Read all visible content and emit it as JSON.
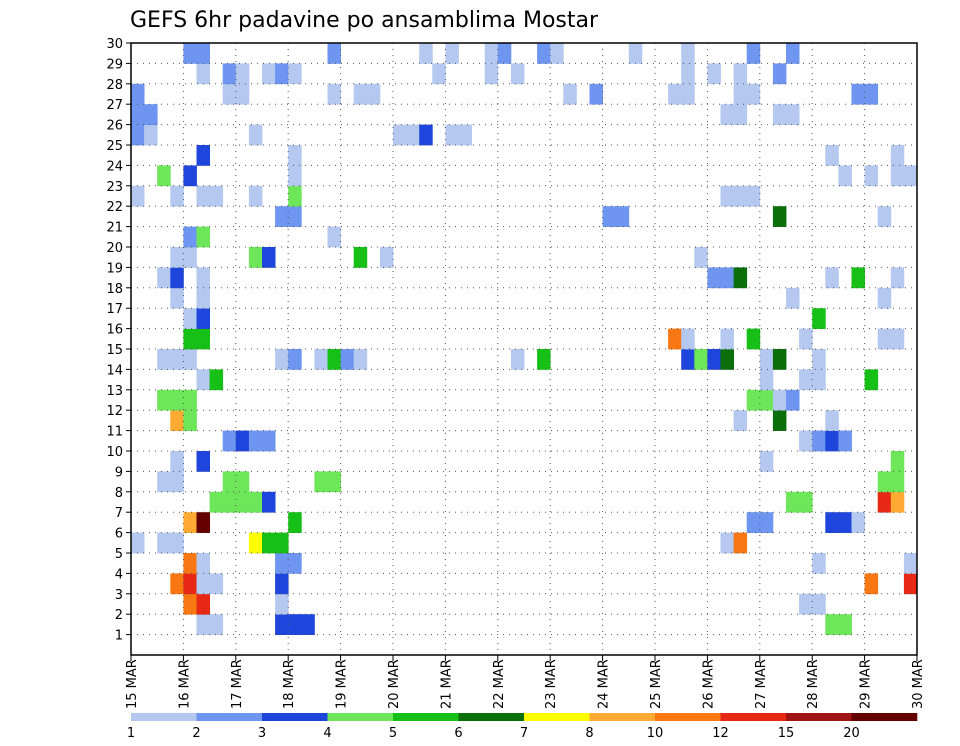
{
  "chart_data": {
    "type": "heatmap",
    "title": "GEFS 6hr padavine po ansamblima Mostar",
    "y_ticks": [
      "1",
      "2",
      "3",
      "4",
      "5",
      "6",
      "7",
      "8",
      "9",
      "10",
      "11",
      "12",
      "13",
      "14",
      "15",
      "16",
      "17",
      "18",
      "19",
      "20",
      "21",
      "22",
      "23",
      "24",
      "25",
      "26",
      "27",
      "28",
      "29",
      "30"
    ],
    "x_ticks": [
      "15 MAR",
      "16 MAR",
      "17 MAR",
      "18 MAR",
      "19 MAR",
      "20 MAR",
      "21 MAR",
      "22 MAR",
      "23 MAR",
      "24 MAR",
      "25 MAR",
      "26 MAR",
      "27 MAR",
      "28 MAR",
      "29 MAR",
      "30 MAR"
    ],
    "grid": "dotted",
    "legend": {
      "position": "bottom",
      "thresholds": [
        "1",
        "2",
        "3",
        "4",
        "5",
        "6",
        "7",
        "8",
        "10",
        "12",
        "15",
        "20"
      ],
      "colors": [
        "#b4c8f0",
        "#6e96f0",
        "#1e46dc",
        "#6ee65a",
        "#16c016",
        "#0a6e0a",
        "#ffff00",
        "#ffaa32",
        "#fa7814",
        "#e62814",
        "#a01414",
        "#640000"
      ]
    },
    "grid_columns": 60,
    "grid_rows_bottom_to_top": [
      "............................................................",
      ".....aa....ccc.......................................dd.....",
      "....ij.....a.......................................aa......",
      "...ijaa....c............................................i..j",
      "....ia.....bb.......................................a......a",
      "a.aa.....gee.................................ai............",
      "....hl......e..................................bb....cca...",
      "......ddddc.......................................dd.....jh.",
      "..aa...dd.....dd.........................................dd.",
      "...a.c..........................................a.........d",
      ".......bcbb........................................abcb.....",
      "...hd.........................................a..f...a.....",
      "..ddd..........................................ddab........",
      ".....ae.........................................a..aa...e..",
      "..aaa......ab.aeba...........a.e..........cdcf..af..a.......",
      "....ee...................................ia..a.e...a.....aa..",
      "....ac..............................................e......",
      "...a.a............................................a......a.",
      "..ac.a......................................bbf......a.e..a.",
      "...aa....dc......e.a.......................a..............",
      "....bd.........a..........................................",
      "...........bb.......................bb...........f.......a..",
      "a..a.aa..a..d................................aaa............",
      "..d.c.......a.........................................a.a.aaa",
      ".....c......a........................................a....a..",
      "ba.......a..........aac.aa.................................",
      "bb...........................................aa..aa........",
      "b......aa......a.aa..............a.b.....aa...aa.......bb..",
      ".....a.ba.aba..........a...a.a............a.a.a..b.........",
      "....bb.........b......a.a..ab..ba.....a...a....b..b........."
    ]
  }
}
